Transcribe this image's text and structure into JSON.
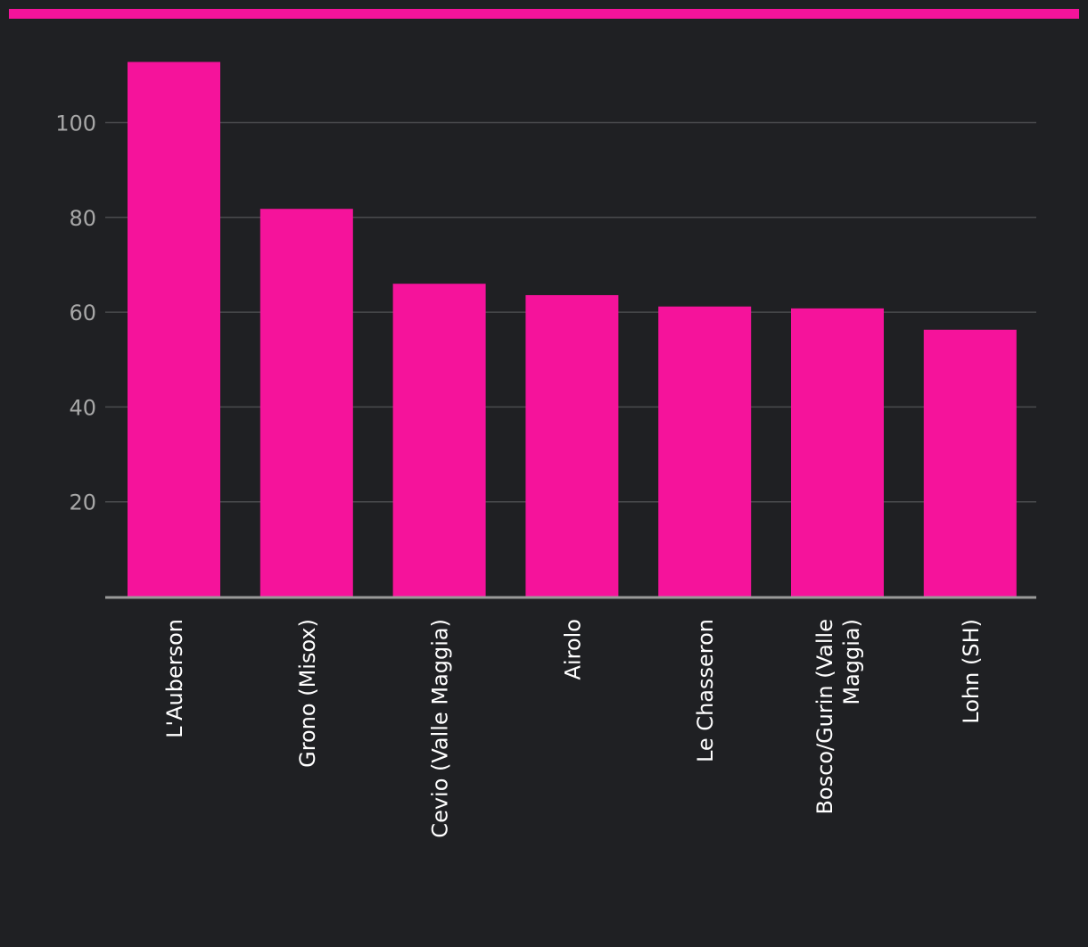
{
  "colors": {
    "background": "#1f2023",
    "accent": "#f5139b",
    "bar": "#f5139b",
    "grid": "#4a4b4e",
    "axis": "#9a9a9a",
    "tick_text": "#a8a8a8",
    "label_text": "#ffffff"
  },
  "chart_data": {
    "type": "bar",
    "title": "",
    "xlabel": "",
    "ylabel": "",
    "ylim": [
      0,
      115
    ],
    "yticks": [
      20,
      40,
      60,
      80,
      100
    ],
    "grid": true,
    "categories": [
      [
        "L'Auberson"
      ],
      [
        "Grono (Misox)"
      ],
      [
        "Cevio (Valle Maggia)"
      ],
      [
        "Airolo"
      ],
      [
        "Le Chasseron"
      ],
      [
        "Bosco/Gurin (Valle",
        "Maggia)"
      ],
      [
        "Lohn (SH)"
      ]
    ],
    "values": [
      112.8,
      81.8,
      66.0,
      63.6,
      61.2,
      60.8,
      56.3
    ]
  }
}
